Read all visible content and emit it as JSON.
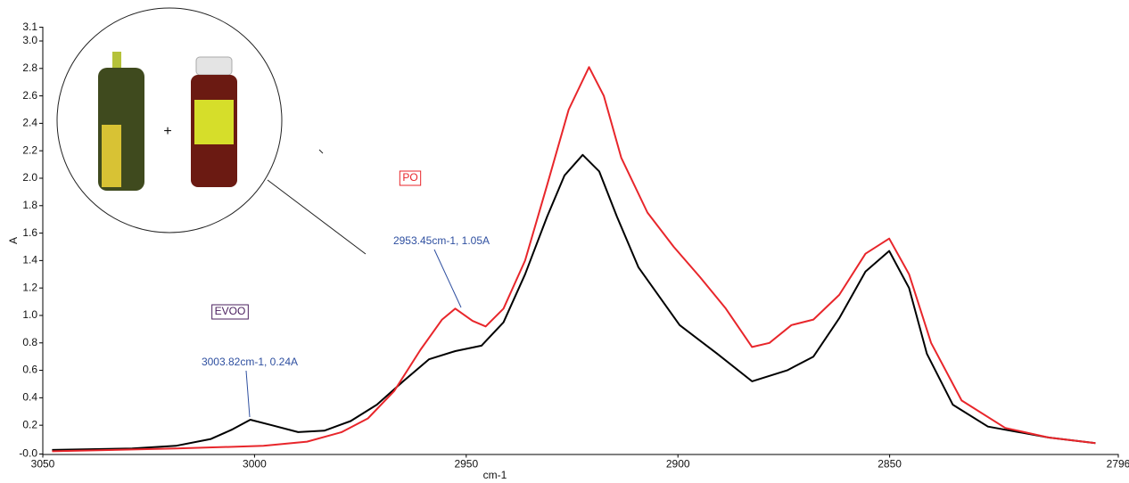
{
  "chart_data": {
    "type": "line",
    "x_label": "cm-1",
    "y_label": "A",
    "xlim": [
      3050,
      2796
    ],
    "xticks": [
      3050,
      3000,
      2950,
      2900,
      2850,
      2796
    ],
    "ylim": [
      -0.01,
      3.1
    ],
    "yticks": [
      {
        "value": -0.01,
        "label": "-0.0"
      },
      0.2,
      0.4,
      0.6,
      0.8,
      {
        "value": 1,
        "label": "1.0"
      },
      1.2,
      1.4,
      1.6,
      1.8,
      {
        "value": 2,
        "label": "2.0"
      },
      2.2,
      2.4,
      2.6,
      2.8,
      {
        "value": 3,
        "label": "3.0"
      },
      3.1
    ],
    "series": [
      {
        "name": "EVOO",
        "color": "#000000",
        "x": [
          3047.8,
          3028.9,
          3018.6,
          3010.3,
          3005.2,
          3001,
          2995.9,
          2989.7,
          2983.5,
          2977.3,
          2971.1,
          2964.9,
          2958.8,
          2952.6,
          2946.4,
          2941.2,
          2936.1,
          2930.9,
          2926.8,
          2922.5,
          2918.6,
          2914.4,
          2909.3,
          2899.6,
          2890.7,
          2882.5,
          2874.2,
          2868,
          2861.9,
          2855.7,
          2850.1,
          2845.4,
          2841.2,
          2835.1,
          2826.8,
          2812.4,
          2801.4
        ],
        "values": [
          0.02,
          0.03,
          0.05,
          0.1,
          0.17,
          0.24,
          0.2,
          0.15,
          0.16,
          0.23,
          0.35,
          0.52,
          0.68,
          0.74,
          0.78,
          0.95,
          1.3,
          1.72,
          2.02,
          2.17,
          2.05,
          1.72,
          1.35,
          0.93,
          0.72,
          0.52,
          0.6,
          0.7,
          0.98,
          1.32,
          1.47,
          1.2,
          0.72,
          0.35,
          0.19,
          0.11,
          0.07
        ]
      },
      {
        "name": "PO",
        "color": "#e8262b",
        "x": [
          3047.8,
          3018.6,
          2997.9,
          2987.6,
          2979.4,
          2973.2,
          2967,
          2960.8,
          2955.7,
          2952.6,
          2948.5,
          2945.4,
          2941.2,
          2936.1,
          2930.9,
          2925.8,
          2921,
          2917.5,
          2913.4,
          2907.2,
          2901,
          2894.8,
          2888.7,
          2882.5,
          2878.4,
          2873.2,
          2868,
          2861.9,
          2855.7,
          2850.1,
          2845.4,
          2840.2,
          2833,
          2822.7,
          2812.4,
          2801.4
        ],
        "values": [
          0.01,
          0.03,
          0.05,
          0.08,
          0.15,
          0.25,
          0.45,
          0.75,
          0.97,
          1.05,
          0.96,
          0.92,
          1.05,
          1.4,
          1.95,
          2.5,
          2.81,
          2.6,
          2.15,
          1.75,
          1.5,
          1.28,
          1.05,
          0.77,
          0.8,
          0.93,
          0.97,
          1.15,
          1.45,
          1.56,
          1.3,
          0.8,
          0.38,
          0.18,
          0.11,
          0.07
        ]
      }
    ],
    "annotations": [
      "3003.82cm-1, 0.24A",
      "2953.45cm-1, 1.05A"
    ],
    "inset_plus": "+"
  }
}
